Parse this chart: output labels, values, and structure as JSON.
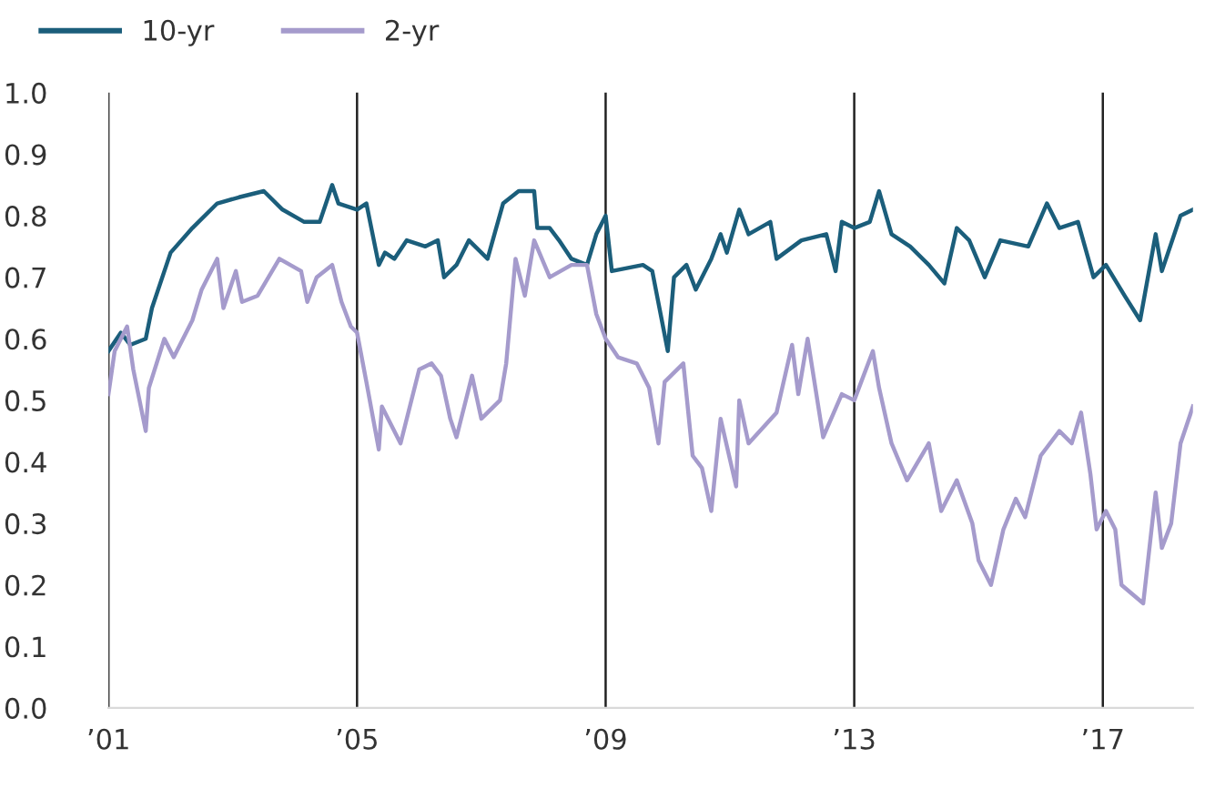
{
  "chart_data": {
    "type": "line",
    "legend": "top left",
    "grid": "x",
    "xlim": [
      2001,
      2018.45
    ],
    "ylim": [
      0,
      1.0
    ],
    "xticks": [
      {
        "value": 2001,
        "label": "’01"
      },
      {
        "value": 2005,
        "label": "’05"
      },
      {
        "value": 2009,
        "label": "’09"
      },
      {
        "value": 2013,
        "label": "’13"
      },
      {
        "value": 2017,
        "label": "’17"
      }
    ],
    "yticks": [
      {
        "value": 0,
        "label": "0.0"
      },
      0.1,
      0.2,
      0.3,
      0.4,
      0.5,
      0.6,
      0.7,
      0.8,
      0.9,
      {
        "value": 1,
        "label": "1.0"
      }
    ],
    "series": [
      {
        "name": "10-yr",
        "color": "#1b5e7b",
        "x": [
          2001.0,
          2001.2,
          2001.35,
          2001.6,
          2001.7,
          2002.0,
          2002.35,
          2002.75,
          2003.1,
          2003.5,
          2003.8,
          2004.15,
          2004.4,
          2004.6,
          2004.7,
          2005.0,
          2005.15,
          2005.35,
          2005.45,
          2005.6,
          2005.8,
          2006.1,
          2006.3,
          2006.4,
          2006.6,
          2006.8,
          2007.1,
          2007.35,
          2007.6,
          2007.85,
          2007.9,
          2008.1,
          2008.25,
          2008.45,
          2008.7,
          2008.85,
          2009.0,
          2009.1,
          2009.6,
          2009.75,
          2010.0,
          2010.1,
          2010.3,
          2010.45,
          2010.7,
          2010.85,
          2010.95,
          2011.15,
          2011.3,
          2011.65,
          2011.75,
          2012.15,
          2012.55,
          2012.7,
          2012.8,
          2013.0,
          2013.25,
          2013.4,
          2013.6,
          2013.9,
          2014.2,
          2014.45,
          2014.65,
          2014.85,
          2015.1,
          2015.35,
          2015.8,
          2016.1,
          2016.3,
          2016.6,
          2016.85,
          2017.05,
          2017.35,
          2017.6,
          2017.85,
          2017.95,
          2018.25,
          2018.45
        ],
        "values": [
          0.58,
          0.61,
          0.59,
          0.6,
          0.65,
          0.74,
          0.78,
          0.82,
          0.83,
          0.84,
          0.81,
          0.79,
          0.79,
          0.85,
          0.82,
          0.81,
          0.82,
          0.72,
          0.74,
          0.73,
          0.76,
          0.75,
          0.76,
          0.7,
          0.72,
          0.76,
          0.73,
          0.82,
          0.84,
          0.84,
          0.78,
          0.78,
          0.76,
          0.73,
          0.72,
          0.77,
          0.8,
          0.71,
          0.72,
          0.71,
          0.58,
          0.7,
          0.72,
          0.68,
          0.73,
          0.77,
          0.74,
          0.81,
          0.77,
          0.79,
          0.73,
          0.76,
          0.77,
          0.71,
          0.79,
          0.78,
          0.79,
          0.84,
          0.77,
          0.75,
          0.72,
          0.69,
          0.78,
          0.76,
          0.7,
          0.76,
          0.75,
          0.82,
          0.78,
          0.79,
          0.7,
          0.72,
          0.67,
          0.63,
          0.77,
          0.71,
          0.8,
          0.81
        ]
      },
      {
        "name": "2-yr",
        "color": "#a59bcc",
        "x": [
          2001.0,
          2001.1,
          2001.3,
          2001.4,
          2001.5,
          2001.6,
          2001.65,
          2001.9,
          2002.05,
          2002.35,
          2002.5,
          2002.75,
          2002.85,
          2003.05,
          2003.15,
          2003.4,
          2003.75,
          2004.1,
          2004.2,
          2004.35,
          2004.6,
          2004.75,
          2004.9,
          2005.0,
          2005.15,
          2005.35,
          2005.4,
          2005.7,
          2006.0,
          2006.2,
          2006.35,
          2006.5,
          2006.6,
          2006.85,
          2007.0,
          2007.3,
          2007.4,
          2007.55,
          2007.7,
          2007.85,
          2008.1,
          2008.45,
          2008.7,
          2008.85,
          2009.0,
          2009.2,
          2009.5,
          2009.7,
          2009.85,
          2009.95,
          2010.25,
          2010.4,
          2010.55,
          2010.7,
          2010.85,
          2011.1,
          2011.15,
          2011.3,
          2011.75,
          2012.0,
          2012.1,
          2012.25,
          2012.5,
          2012.8,
          2013.0,
          2013.3,
          2013.4,
          2013.6,
          2013.85,
          2014.2,
          2014.4,
          2014.65,
          2014.9,
          2015.0,
          2015.2,
          2015.4,
          2015.6,
          2015.75,
          2016.0,
          2016.3,
          2016.5,
          2016.65,
          2016.8,
          2016.9,
          2017.05,
          2017.2,
          2017.3,
          2017.65,
          2017.85,
          2017.95,
          2018.1,
          2018.25,
          2018.45
        ],
        "values": [
          0.51,
          0.58,
          0.62,
          0.55,
          0.5,
          0.45,
          0.52,
          0.6,
          0.57,
          0.63,
          0.68,
          0.73,
          0.65,
          0.71,
          0.66,
          0.67,
          0.73,
          0.71,
          0.66,
          0.7,
          0.72,
          0.66,
          0.62,
          0.61,
          0.53,
          0.42,
          0.49,
          0.43,
          0.55,
          0.56,
          0.54,
          0.47,
          0.44,
          0.54,
          0.47,
          0.5,
          0.56,
          0.73,
          0.67,
          0.76,
          0.7,
          0.72,
          0.72,
          0.64,
          0.6,
          0.57,
          0.56,
          0.52,
          0.43,
          0.53,
          0.56,
          0.41,
          0.39,
          0.32,
          0.47,
          0.36,
          0.5,
          0.43,
          0.48,
          0.59,
          0.51,
          0.6,
          0.44,
          0.51,
          0.5,
          0.58,
          0.52,
          0.43,
          0.37,
          0.43,
          0.32,
          0.37,
          0.3,
          0.24,
          0.2,
          0.29,
          0.34,
          0.31,
          0.41,
          0.45,
          0.43,
          0.48,
          0.38,
          0.29,
          0.32,
          0.29,
          0.2,
          0.17,
          0.35,
          0.26,
          0.3,
          0.43,
          0.49
        ]
      }
    ]
  }
}
